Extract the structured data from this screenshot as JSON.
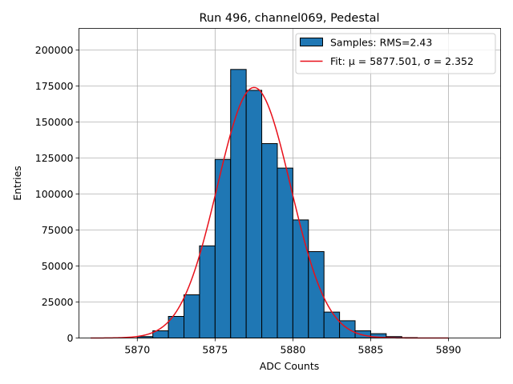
{
  "chart_data": {
    "type": "bar",
    "title": "Run 496, channel069, Pedestal",
    "xlabel": "ADC Counts",
    "ylabel": "Entries",
    "xlim": [
      5866.25,
      5893.35
    ],
    "ylim": [
      0,
      215000
    ],
    "xticks": [
      5870,
      5875,
      5880,
      5885,
      5890
    ],
    "yticks": [
      0,
      25000,
      50000,
      75000,
      100000,
      125000,
      150000,
      175000,
      200000
    ],
    "grid": true,
    "legend_position": "top-right",
    "histogram": {
      "name": "Samples: RMS=2.43",
      "color": "#1f77b4",
      "bin_width": 1,
      "bin_lefts": [
        5870,
        5871,
        5872,
        5873,
        5874,
        5875,
        5876,
        5877,
        5878,
        5879,
        5880,
        5881,
        5882,
        5883,
        5884,
        5885,
        5886,
        5887
      ],
      "values": [
        1000,
        5000,
        15000,
        30000,
        64000,
        124000,
        186500,
        172000,
        135000,
        118000,
        82000,
        60000,
        18000,
        12000,
        5000,
        3000,
        1000,
        300
      ]
    },
    "fit": {
      "name": "Fit: μ = 5877.501, σ = 2.352",
      "color": "#e8101a",
      "mu": 5877.501,
      "sigma": 2.352,
      "amplitude": 174000,
      "x_range": [
        5867,
        5890
      ]
    }
  }
}
